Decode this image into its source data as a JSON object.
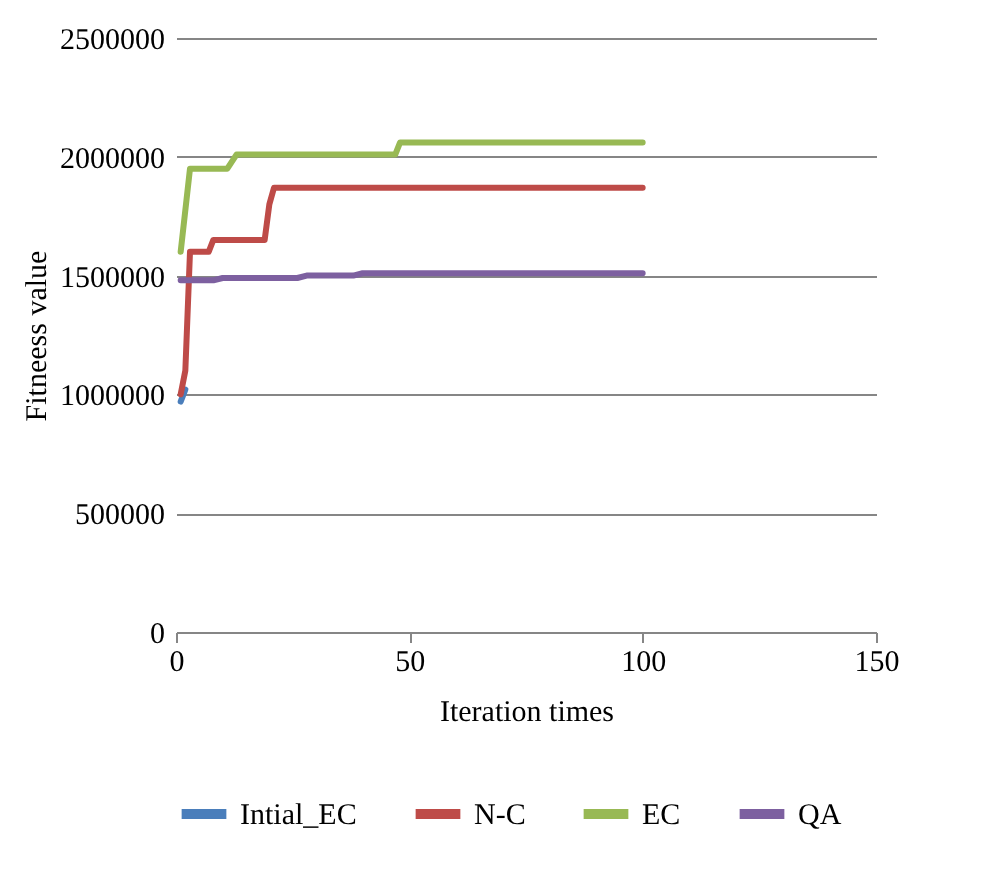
{
  "chart_data": {
    "type": "line",
    "xlabel": "Iteration times",
    "ylabel": "Fitneess value",
    "xlim": [
      0,
      150
    ],
    "xticks": [
      0,
      50,
      100,
      150
    ],
    "ylim": [
      0,
      2500000
    ],
    "yticks": [
      0,
      500000,
      1000000,
      1500000,
      2000000,
      2500000
    ],
    "grid": "y",
    "legend": "bottom",
    "marker": "none",
    "line_style": "solid",
    "series": [
      {
        "name": "Intial_EC",
        "color": "#4a7ebb",
        "x": [
          1,
          2
        ],
        "values": [
          970000,
          1020000
        ]
      },
      {
        "name": "N-C",
        "color": "#be4b48",
        "x": [
          1,
          2,
          3,
          7,
          8,
          19,
          20,
          21,
          100
        ],
        "values": [
          1000000,
          1100000,
          1600000,
          1600000,
          1650000,
          1650000,
          1800000,
          1870000,
          1870000
        ]
      },
      {
        "name": "EC",
        "color": "#98b954",
        "x": [
          1,
          3,
          11,
          13,
          47,
          48,
          100
        ],
        "values": [
          1600000,
          1950000,
          1950000,
          2010000,
          2010000,
          2060000,
          2060000
        ]
      },
      {
        "name": "QA",
        "color": "#7d60a0",
        "x": [
          1,
          8,
          10,
          26,
          28,
          38,
          40,
          100
        ],
        "values": [
          1480000,
          1480000,
          1490000,
          1490000,
          1500000,
          1500000,
          1510000,
          1510000
        ]
      }
    ]
  }
}
